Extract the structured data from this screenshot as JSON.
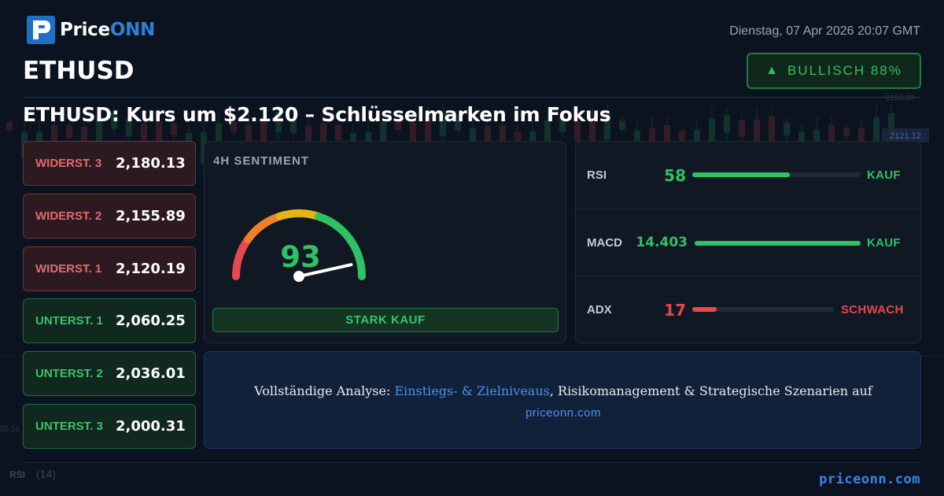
{
  "brand": {
    "name_part1": "Price",
    "name_part2": "ONN"
  },
  "header": {
    "date": "Dienstag, 07 Apr 2026 20:07 GMT",
    "symbol": "ETHUSD",
    "badge": {
      "arrow": "▲",
      "label": "BULLISCH 88%",
      "color": "#2fc163"
    },
    "headline": "ETHUSD: Kurs um $2.120 – Schlüsselmarken im Fokus"
  },
  "levels": [
    {
      "label": "WIDERST. 3",
      "value": "2,180.13",
      "kind": "resistance"
    },
    {
      "label": "WIDERST. 2",
      "value": "2,155.89",
      "kind": "resistance"
    },
    {
      "label": "WIDERST. 1",
      "value": "2,120.19",
      "kind": "resistance"
    },
    {
      "label": "UNTERST. 1",
      "value": "2,060.25",
      "kind": "support"
    },
    {
      "label": "UNTERST. 2",
      "value": "2,036.01",
      "kind": "support"
    },
    {
      "label": "UNTERST. 3",
      "value": "2,000.31",
      "kind": "support"
    }
  ],
  "sentiment": {
    "title": "4H SENTIMENT",
    "score": "93",
    "score_value": 93,
    "signal": "STARK KAUF"
  },
  "indicators": [
    {
      "name": "RSI",
      "value": "58",
      "status": "KAUF",
      "fill": 0.58,
      "color": "#2fc163"
    },
    {
      "name": "MACD",
      "value": "14.403",
      "status": "KAUF",
      "fill": 1.0,
      "color": "#2fc163"
    },
    {
      "name": "ADX",
      "value": "17",
      "status": "SCHWACH",
      "fill": 0.17,
      "color": "#e5484d"
    }
  ],
  "cta": {
    "text_before": "Vollständige Analyse: ",
    "highlight": "Einstiegs- & Zielniveaus",
    "text_after": ", Risikomanagement & Strategische Szenarien auf",
    "url": "priceonn.com"
  },
  "footer": {
    "url": "priceonn.com"
  },
  "background_chart": {
    "price_tag": "2121.12",
    "axis_tick": "2150.00",
    "left_tick": "00.10",
    "rsi_label": "RSI",
    "rsi_period": "(14)"
  },
  "colors": {
    "bullish": "#2fc163",
    "bearish": "#e5484d",
    "accent": "#3b82f0"
  }
}
